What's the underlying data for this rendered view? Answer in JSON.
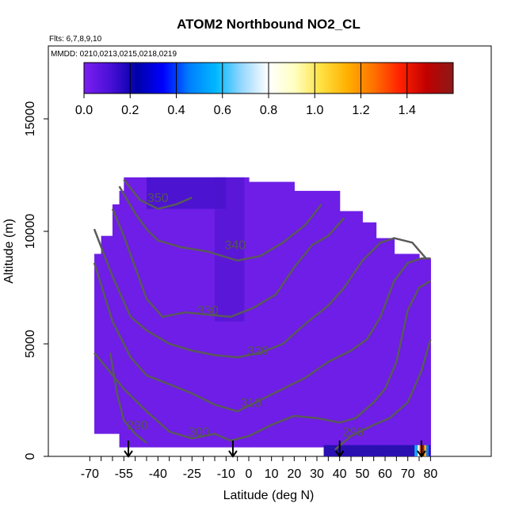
{
  "chart_data": {
    "type": "heatmap",
    "title": "ATOM2 Northbound NO2_CL",
    "flights_note": "Flts: 6,7,8,9,10",
    "dates_note": "MMDD: 0210,0213,0215,0218,0219",
    "xlabel": "Latitude (deg N)",
    "ylabel": "Altitude (m)",
    "xlim": [
      -70,
      82
    ],
    "ylim": [
      0,
      17500
    ],
    "x_ticks": [
      -70,
      -55,
      -40,
      -25,
      -10,
      0,
      10,
      20,
      30,
      40,
      50,
      60,
      70,
      80
    ],
    "y_ticks": [
      0,
      5000,
      10000,
      15000
    ],
    "colorbar": {
      "range": [
        0,
        1.6
      ],
      "ticks": [
        "0.0",
        "0.2",
        "0.4",
        "0.6",
        "0.8",
        "1.0",
        "1.2",
        "1.4"
      ],
      "colors": [
        "#7b1ff0",
        "#4a10d8",
        "#0000a8",
        "#0000ff",
        "#0080ff",
        "#00b8ff",
        "#9ad8ff",
        "#ffffff",
        "#ffffc0",
        "#ffe040",
        "#ffb000",
        "#ff7000",
        "#ff2000",
        "#c00000",
        "#8b1a1a"
      ]
    },
    "coverage": [
      {
        "lat": [
          -68,
          -65
        ],
        "alt": [
          1000,
          9000
        ]
      },
      {
        "lat": [
          -65,
          -60
        ],
        "alt": [
          1000,
          9800
        ]
      },
      {
        "lat": [
          -60,
          -57
        ],
        "alt": [
          1000,
          11200
        ]
      },
      {
        "lat": [
          -57,
          -55
        ],
        "alt": [
          400,
          11800
        ]
      },
      {
        "lat": [
          -55,
          0
        ],
        "alt": [
          400,
          12400
        ]
      },
      {
        "lat": [
          0,
          20
        ],
        "alt": [
          400,
          12200
        ]
      },
      {
        "lat": [
          20,
          33
        ],
        "alt": [
          400,
          11800
        ]
      },
      {
        "lat": [
          33,
          40
        ],
        "alt": [
          0,
          11800
        ]
      },
      {
        "lat": [
          40,
          50
        ],
        "alt": [
          0,
          10900
        ]
      },
      {
        "lat": [
          50,
          56
        ],
        "alt": [
          0,
          10400
        ]
      },
      {
        "lat": [
          56,
          64
        ],
        "alt": [
          0,
          9700
        ]
      },
      {
        "lat": [
          64,
          75
        ],
        "alt": [
          0,
          9000
        ]
      },
      {
        "lat": [
          75,
          80
        ],
        "alt": [
          0,
          8800
        ]
      }
    ],
    "contours": [
      {
        "label": "290",
        "label_at": [
          -49,
          1200
        ],
        "points": [
          [
            -61,
            4600
          ],
          [
            -58,
            2800
          ],
          [
            -55,
            1600
          ],
          [
            -50,
            1000
          ],
          [
            -45,
            600
          ]
        ]
      },
      {
        "label": "290",
        "label_at": [
          46,
          900
        ],
        "points": [
          [
            38,
            300
          ],
          [
            45,
            900
          ],
          [
            55,
            1400
          ],
          [
            62,
            1700
          ],
          [
            70,
            2400
          ],
          [
            76,
            3800
          ],
          [
            80,
            5200
          ]
        ]
      },
      {
        "label": "300",
        "label_at": [
          -22,
          900
        ],
        "points": [
          [
            -68,
            4600
          ],
          [
            -55,
            3000
          ],
          [
            -45,
            2000
          ],
          [
            -35,
            1100
          ],
          [
            -25,
            800
          ],
          [
            -15,
            1000
          ],
          [
            -8,
            700
          ],
          [
            0,
            900
          ],
          [
            10,
            1400
          ],
          [
            20,
            1800
          ],
          [
            30,
            1700
          ],
          [
            40,
            1500
          ],
          [
            47,
            1700
          ],
          [
            55,
            2400
          ],
          [
            60,
            3000
          ],
          [
            65,
            4200
          ],
          [
            70,
            6500
          ],
          [
            75,
            7500
          ],
          [
            80,
            7800
          ]
        ]
      },
      {
        "label": "310",
        "label_at": [
          1,
          2200
        ],
        "points": [
          [
            -68,
            8600
          ],
          [
            -60,
            6000
          ],
          [
            -52,
            4400
          ],
          [
            -45,
            3600
          ],
          [
            -35,
            3200
          ],
          [
            -25,
            2800
          ],
          [
            -15,
            2300
          ],
          [
            -5,
            2000
          ],
          [
            5,
            2500
          ],
          [
            15,
            3000
          ],
          [
            25,
            3500
          ],
          [
            35,
            4200
          ],
          [
            45,
            4700
          ],
          [
            52,
            5200
          ],
          [
            58,
            6200
          ],
          [
            64,
            7800
          ],
          [
            70,
            8600
          ],
          [
            76,
            8800
          ],
          [
            80,
            8800
          ]
        ]
      },
      {
        "label": "320",
        "label_at": [
          4,
          4500
        ],
        "points": [
          [
            -68,
            10100
          ],
          [
            -60,
            8000
          ],
          [
            -52,
            6200
          ],
          [
            -45,
            5600
          ],
          [
            -35,
            5000
          ],
          [
            -25,
            4700
          ],
          [
            -15,
            4500
          ],
          [
            -5,
            4400
          ],
          [
            5,
            4600
          ],
          [
            15,
            5000
          ],
          [
            25,
            5900
          ],
          [
            35,
            6700
          ],
          [
            42,
            7500
          ],
          [
            50,
            8700
          ],
          [
            58,
            9500
          ],
          [
            64,
            9700
          ],
          [
            72,
            9500
          ],
          [
            78,
            8800
          ]
        ]
      },
      {
        "label": "330",
        "label_at": [
          -18,
          6300
        ],
        "points": [
          [
            -60,
            11000
          ],
          [
            -55,
            9800
          ],
          [
            -50,
            8400
          ],
          [
            -45,
            7000
          ],
          [
            -38,
            6200
          ],
          [
            -28,
            6400
          ],
          [
            -18,
            6300
          ],
          [
            -8,
            6200
          ],
          [
            2,
            6600
          ],
          [
            12,
            7200
          ],
          [
            20,
            8400
          ],
          [
            28,
            9400
          ],
          [
            35,
            9800
          ],
          [
            42,
            10600
          ]
        ]
      },
      {
        "label": "340",
        "label_at": [
          -6,
          9200
        ],
        "points": [
          [
            -57,
            12000
          ],
          [
            -50,
            10800
          ],
          [
            -45,
            10100
          ],
          [
            -40,
            9600
          ],
          [
            -30,
            9300
          ],
          [
            -18,
            9100
          ],
          [
            -5,
            8700
          ],
          [
            5,
            8900
          ],
          [
            15,
            9500
          ],
          [
            25,
            10300
          ],
          [
            32,
            11200
          ]
        ]
      },
      {
        "label": "350",
        "label_at": [
          -40,
          11300
        ],
        "points": [
          [
            -55,
            12300
          ],
          [
            -48,
            11400
          ],
          [
            -40,
            11000
          ],
          [
            -32,
            11200
          ],
          [
            -25,
            11500
          ]
        ]
      }
    ],
    "arrows_lat": [
      -53,
      -7,
      40,
      76
    ]
  }
}
